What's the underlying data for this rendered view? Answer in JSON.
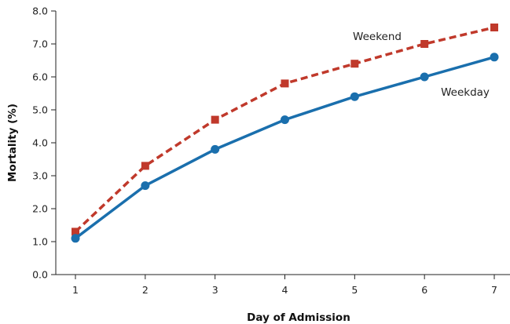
{
  "chart_data": {
    "type": "line",
    "title": "",
    "xlabel": "Day of Admission",
    "ylabel": "Mortality (%)",
    "x": [
      1,
      2,
      3,
      4,
      5,
      6,
      7
    ],
    "x_tick_labels": [
      "1",
      "2",
      "3",
      "4",
      "5",
      "6",
      "7"
    ],
    "ylim": [
      0,
      8
    ],
    "y_tick_labels": [
      "0.0",
      "1.0",
      "2.0",
      "3.0",
      "4.0",
      "5.0",
      "6.0",
      "7.0",
      "8.0"
    ],
    "grid": false,
    "legend": "none (series labeled inline)",
    "series": [
      {
        "name": "Weekend",
        "values": [
          1.3,
          3.3,
          4.7,
          5.8,
          6.4,
          7.0,
          7.5
        ],
        "color": "#c0392b",
        "line_style": "dashed",
        "marker": "square"
      },
      {
        "name": "Weekday",
        "values": [
          1.1,
          2.7,
          3.8,
          4.7,
          5.4,
          6.0,
          6.6
        ],
        "color": "#1a6fad",
        "line_style": "solid",
        "marker": "circle"
      }
    ]
  }
}
